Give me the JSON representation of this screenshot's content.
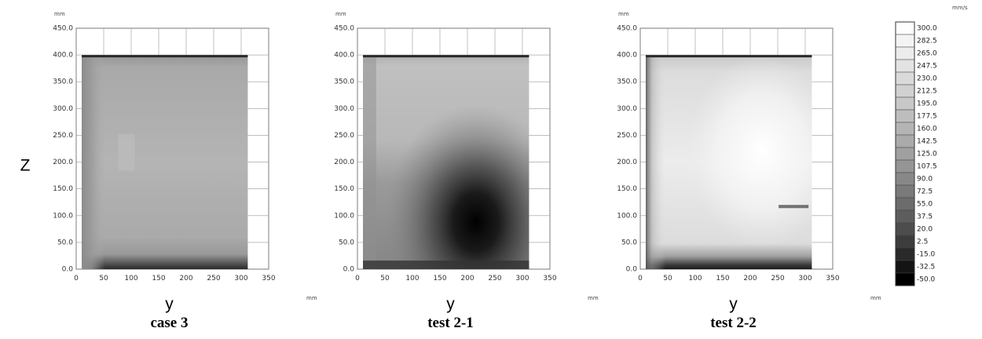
{
  "z_axis_label": "Z",
  "y_axis_label": "y",
  "panel_unit_top": "mm",
  "panel_unit_bottom": "mm",
  "legend_unit": "mm/s",
  "chart_data": [
    {
      "type": "heatmap",
      "title": "case 3",
      "xlabel": "y",
      "ylabel": "Z",
      "x_ticks": [
        "0",
        "50",
        "100",
        "150",
        "200",
        "250",
        "300",
        "350"
      ],
      "y_ticks": [
        "0.0",
        "50.0",
        "100.0",
        "150.0",
        "200.0",
        "250.0",
        "300.0",
        "350.0",
        "400.0",
        "450.0"
      ],
      "xlim": [
        0,
        350
      ],
      "ylim": [
        0,
        450
      ],
      "data_region": {
        "y": [
          10,
          312
        ],
        "z": [
          0,
          400
        ]
      },
      "colorbar_range": [
        -50,
        300
      ]
    },
    {
      "type": "heatmap",
      "title": "test 2-1",
      "xlabel": "y",
      "ylabel": "Z",
      "x_ticks": [
        "0",
        "50",
        "100",
        "150",
        "200",
        "250",
        "300",
        "350"
      ],
      "y_ticks": [
        "0.0",
        "50.0",
        "100.0",
        "150.0",
        "200.0",
        "250.0",
        "300.0",
        "350.0",
        "400.0",
        "450.0"
      ],
      "xlim": [
        0,
        350
      ],
      "ylim": [
        0,
        450
      ],
      "data_region": {
        "y": [
          10,
          312
        ],
        "z": [
          0,
          400
        ]
      },
      "colorbar_range": [
        -50,
        300
      ]
    },
    {
      "type": "heatmap",
      "title": "test 2-2",
      "xlabel": "y",
      "ylabel": "Z",
      "x_ticks": [
        "0",
        "50",
        "100",
        "150",
        "200",
        "250",
        "300",
        "350"
      ],
      "y_ticks": [
        "0.0",
        "50.0",
        "100.0",
        "150.0",
        "200.0",
        "250.0",
        "300.0",
        "350.0",
        "400.0",
        "450.0"
      ],
      "xlim": [
        0,
        350
      ],
      "ylim": [
        0,
        450
      ],
      "data_region": {
        "y": [
          10,
          312
        ],
        "z": [
          0,
          400
        ]
      },
      "colorbar_range": [
        -50,
        300
      ]
    }
  ],
  "colorbar": {
    "levels": [
      "300.0",
      "282.5",
      "265.0",
      "247.5",
      "230.0",
      "212.5",
      "195.0",
      "177.5",
      "160.0",
      "142.5",
      "125.0",
      "107.5",
      "90.0",
      "72.5",
      "55.0",
      "37.5",
      "20.0",
      "2.5",
      "-15.0",
      "-32.5",
      "-50.0"
    ],
    "colors": [
      "#ffffff",
      "#f4f4f4",
      "#ececec",
      "#e3e3e3",
      "#dadada",
      "#d1d1d1",
      "#c8c8c8",
      "#bebebe",
      "#b4b4b4",
      "#aaaaaa",
      "#a0a0a0",
      "#959595",
      "#888888",
      "#7a7a7a",
      "#6c6c6c",
      "#5d5d5d",
      "#4d4d4d",
      "#3c3c3c",
      "#2a2a2a",
      "#141414",
      "#000000"
    ]
  }
}
